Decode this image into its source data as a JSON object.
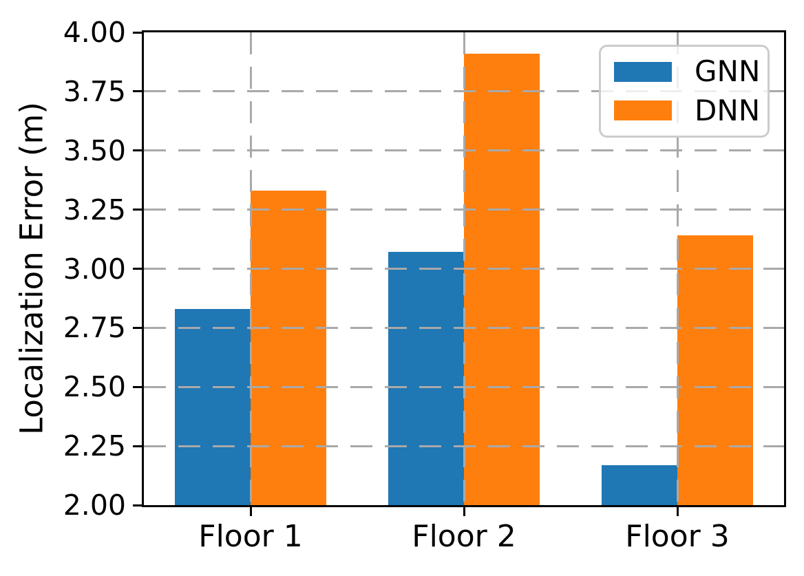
{
  "figure": {
    "background": "#ffffff"
  },
  "chart_data": {
    "type": "bar",
    "title": "",
    "xlabel": "",
    "ylabel": "Localization Error (m)",
    "categories": [
      "Floor 1",
      "Floor 2",
      "Floor 3"
    ],
    "series": [
      {
        "name": "GNN",
        "color": "#1f77b4",
        "values": [
          2.83,
          3.07,
          2.17
        ]
      },
      {
        "name": "DNN",
        "color": "#ff7f0e",
        "values": [
          3.33,
          3.91,
          3.14
        ]
      }
    ],
    "ylim": [
      2.0,
      4.0
    ],
    "ytick_step": 0.25,
    "ytick_labels": [
      "2.00",
      "2.25",
      "2.50",
      "2.75",
      "3.00",
      "3.25",
      "3.50",
      "3.75",
      "4.00"
    ],
    "grid": {
      "show": true,
      "style": "dashed",
      "axes": "both",
      "color": "#a9a9a9",
      "on_top": true
    },
    "legend": {
      "position": "upper-right",
      "entries": [
        "GNN",
        "DNN"
      ]
    },
    "spine_color": "#000000",
    "tick_color": "#000000"
  }
}
